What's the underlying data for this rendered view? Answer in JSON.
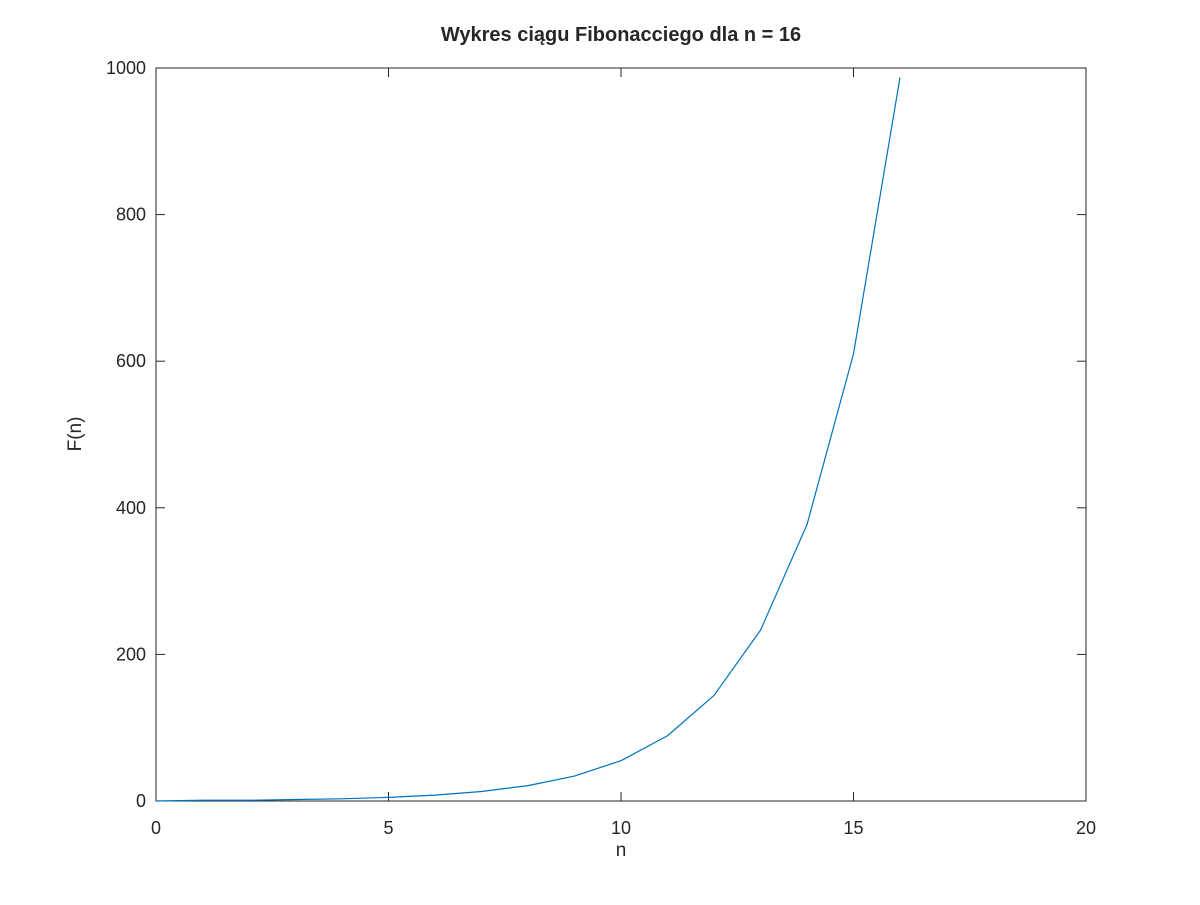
{
  "chart_data": {
    "type": "line",
    "title": "Wykres ciągu Fibonacciego dla n = 16",
    "xlabel": "n",
    "ylabel": "F(n)",
    "xlim": [
      0,
      20
    ],
    "ylim": [
      0,
      1000
    ],
    "xticks": [
      0,
      5,
      10,
      15,
      20
    ],
    "yticks": [
      0,
      200,
      400,
      600,
      800,
      1000
    ],
    "xtick_labels": [
      "0",
      "5",
      "10",
      "15",
      "20"
    ],
    "ytick_labels": [
      "0",
      "200",
      "400",
      "600",
      "800",
      "1000"
    ],
    "grid": false,
    "line_color": "#0072BD",
    "axis_color": "#262626",
    "series": [
      {
        "x": [
          0,
          1,
          2,
          3,
          4,
          5,
          6,
          7,
          8,
          9,
          10,
          11,
          12,
          13,
          14,
          15,
          16
        ],
        "y": [
          0,
          1,
          1,
          2,
          3,
          5,
          8,
          13,
          21,
          34,
          55,
          89,
          144,
          233,
          377,
          610,
          987
        ]
      }
    ]
  }
}
